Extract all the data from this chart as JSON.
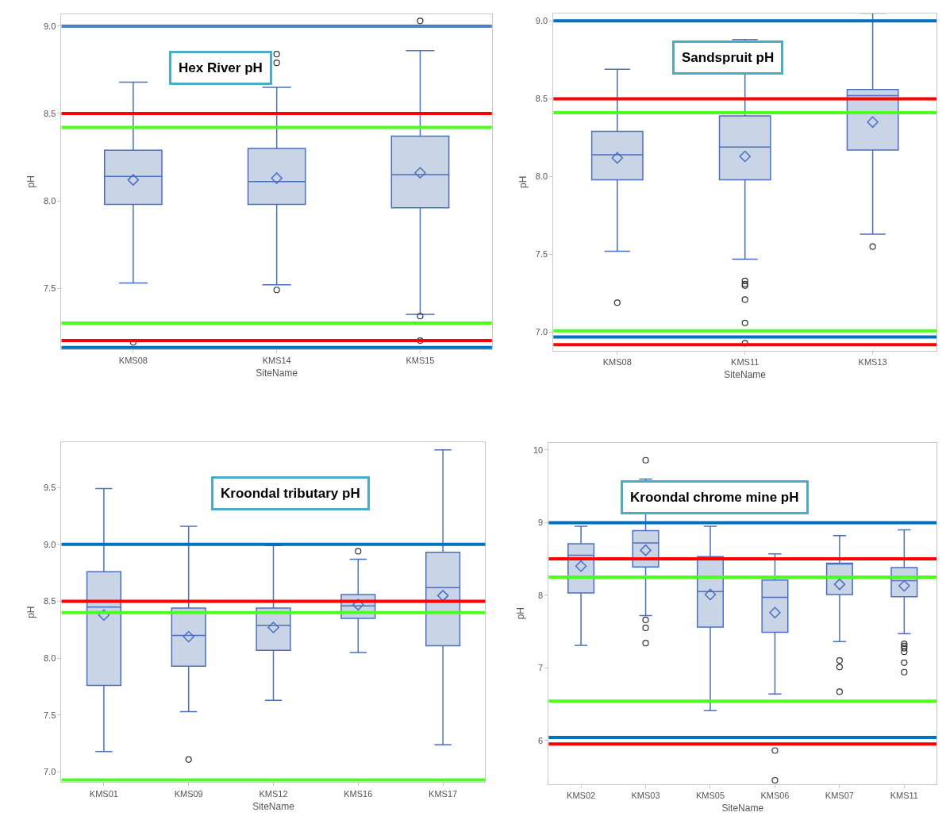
{
  "chart_data": [
    {
      "type": "box",
      "title": "Hex River pH",
      "xlabel": "SiteName",
      "ylabel": "pH",
      "categories": [
        "KMS08",
        "KMS14",
        "KMS15"
      ],
      "color": "#4a6fc0",
      "boxes": [
        {
          "low": 7.53,
          "q1": 7.98,
          "median": 8.14,
          "q3": 8.29,
          "high": 8.68,
          "mean": 8.12,
          "outliers": [
            7.19
          ]
        },
        {
          "low": 7.52,
          "q1": 7.98,
          "median": 8.11,
          "q3": 8.3,
          "high": 8.65,
          "mean": 8.13,
          "outliers": [
            8.84,
            8.79,
            7.49
          ]
        },
        {
          "low": 7.35,
          "q1": 7.96,
          "median": 8.15,
          "q3": 8.37,
          "high": 8.86,
          "mean": 8.16,
          "outliers": [
            9.03,
            7.34,
            7.2
          ]
        }
      ],
      "ylim": [
        7.15,
        9.07
      ],
      "yticks": [
        {
          "value": 7.5,
          "label": "7.5"
        },
        {
          "value": 8,
          "label": "8.0"
        },
        {
          "value": 8.5,
          "label": "8.5"
        },
        {
          "value": 9,
          "label": "9.0"
        }
      ],
      "ref_lines": [
        {
          "axis": "y",
          "value": 9.0,
          "color": "#4f7fbf"
        },
        {
          "axis": "y",
          "value": 8.5,
          "color": "#ff0000"
        },
        {
          "axis": "y",
          "value": 8.42,
          "color": "#4cff1c"
        },
        {
          "axis": "y",
          "value": 7.3,
          "color": "#4cff1c"
        },
        {
          "axis": "y",
          "value": 7.2,
          "color": "#ff0000"
        },
        {
          "axis": "y",
          "value": 7.16,
          "color": "#0070c0"
        }
      ]
    },
    {
      "type": "box",
      "title": "Sandspruit pH",
      "xlabel": "SiteName",
      "ylabel": "pH",
      "categories": [
        "KMS08",
        "KMS11",
        "KMS13"
      ],
      "color": "#4a6fc0",
      "boxes": [
        {
          "low": 7.52,
          "q1": 7.98,
          "median": 8.14,
          "q3": 8.29,
          "high": 8.69,
          "mean": 8.12,
          "outliers": [
            7.19
          ]
        },
        {
          "low": 7.47,
          "q1": 7.98,
          "median": 8.19,
          "q3": 8.39,
          "high": 8.88,
          "mean": 8.13,
          "outliers": [
            7.33,
            7.31,
            7.3,
            7.21,
            7.06,
            6.93
          ]
        },
        {
          "low": 7.63,
          "q1": 8.17,
          "median": 8.52,
          "q3": 8.56,
          "high": 9.05,
          "mean": 8.35,
          "outliers": [
            7.55
          ]
        }
      ],
      "ylim": [
        6.88,
        9.05
      ],
      "yticks": [
        {
          "value": 7,
          "label": "7.0"
        },
        {
          "value": 7.5,
          "label": "7.5"
        },
        {
          "value": 8,
          "label": "8.0"
        },
        {
          "value": 8.5,
          "label": "8.5"
        },
        {
          "value": 9,
          "label": "9.0"
        }
      ],
      "ref_lines": [
        {
          "axis": "y",
          "value": 9.0,
          "color": "#0070c0"
        },
        {
          "axis": "y",
          "value": 8.5,
          "color": "#ff0000"
        },
        {
          "axis": "y",
          "value": 8.41,
          "color": "#4cff1c"
        },
        {
          "axis": "y",
          "value": 7.01,
          "color": "#4cff1c"
        },
        {
          "axis": "y",
          "value": 6.97,
          "color": "#0070c0"
        },
        {
          "axis": "y",
          "value": 6.92,
          "color": "#ff0000"
        }
      ]
    },
    {
      "type": "box",
      "title": "Kroondal tributary pH",
      "xlabel": "SiteName",
      "ylabel": "pH",
      "categories": [
        "KMS01",
        "KMS09",
        "KMS12",
        "KMS16",
        "KMS17"
      ],
      "color": "#4a6fc0",
      "boxes": [
        {
          "low": 7.18,
          "q1": 7.76,
          "median": 8.45,
          "q3": 8.76,
          "high": 9.49,
          "mean": 8.38
        },
        {
          "low": 7.53,
          "q1": 7.93,
          "median": 8.2,
          "q3": 8.44,
          "high": 9.16,
          "mean": 8.19,
          "outliers": [
            7.11
          ]
        },
        {
          "low": 7.63,
          "q1": 8.07,
          "median": 8.29,
          "q3": 8.44,
          "high": 8.99,
          "mean": 8.27
        },
        {
          "low": 8.05,
          "q1": 8.35,
          "median": 8.46,
          "q3": 8.56,
          "high": 8.87,
          "mean": 8.47,
          "outliers": [
            8.94
          ]
        },
        {
          "low": 7.24,
          "q1": 8.11,
          "median": 8.62,
          "q3": 8.93,
          "high": 9.83,
          "mean": 8.55
        }
      ],
      "ylim": [
        6.91,
        9.9
      ],
      "yticks": [
        {
          "value": 7,
          "label": "7.0"
        },
        {
          "value": 7.5,
          "label": "7.5"
        },
        {
          "value": 8,
          "label": "8.0"
        },
        {
          "value": 8.5,
          "label": "8.5"
        },
        {
          "value": 9,
          "label": "9.0"
        },
        {
          "value": 9.5,
          "label": "9.5"
        }
      ],
      "ref_lines": [
        {
          "axis": "y",
          "value": 9.0,
          "color": "#0070c0"
        },
        {
          "axis": "y",
          "value": 8.5,
          "color": "#ff0000"
        },
        {
          "axis": "y",
          "value": 8.4,
          "color": "#4cff1c"
        },
        {
          "axis": "y",
          "value": 6.93,
          "color": "#4cff1c"
        }
      ]
    },
    {
      "type": "box",
      "title": "Kroondal chrome mine pH",
      "xlabel": "SiteName",
      "ylabel": "pH",
      "categories": [
        "KMS02",
        "KMS03",
        "KMS05",
        "KMS06",
        "KMS07",
        "KMS11"
      ],
      "color": "#4a6fc0",
      "boxes": [
        {
          "low": 7.31,
          "q1": 8.03,
          "median": 8.55,
          "q3": 8.71,
          "high": 8.95,
          "mean": 8.4
        },
        {
          "low": 7.72,
          "q1": 8.39,
          "median": 8.72,
          "q3": 8.89,
          "high": 9.6,
          "mean": 8.62,
          "outliers": [
            9.86,
            7.66,
            7.55,
            7.34
          ]
        },
        {
          "low": 6.41,
          "q1": 7.56,
          "median": 8.05,
          "q3": 8.53,
          "high": 8.95,
          "mean": 8.01
        },
        {
          "low": 6.64,
          "q1": 7.49,
          "median": 7.97,
          "q3": 8.21,
          "high": 8.57,
          "mean": 7.76,
          "outliers": [
            5.86,
            5.45
          ]
        },
        {
          "low": 7.36,
          "q1": 8.01,
          "median": 8.44,
          "q3": 8.44,
          "high": 8.82,
          "mean": 8.15,
          "outliers": [
            7.1,
            7.01,
            6.67
          ]
        },
        {
          "low": 7.47,
          "q1": 7.98,
          "median": 8.2,
          "q3": 8.38,
          "high": 8.9,
          "mean": 8.13,
          "outliers": [
            7.33,
            7.3,
            7.27,
            7.22,
            7.07,
            6.94
          ]
        }
      ],
      "ylim": [
        5.4,
        10.1
      ],
      "yticks": [
        6,
        7,
        8,
        9,
        10
      ],
      "ref_lines": [
        {
          "axis": "y",
          "value": 9.0,
          "color": "#0070c0"
        },
        {
          "axis": "y",
          "value": 8.5,
          "color": "#ff0000"
        },
        {
          "axis": "y",
          "value": 8.25,
          "color": "#4cff1c"
        },
        {
          "axis": "y",
          "value": 6.54,
          "color": "#4cff1c"
        },
        {
          "axis": "y",
          "value": 6.04,
          "color": "#0070c0"
        },
        {
          "axis": "y",
          "value": 5.95,
          "color": "#ff0000"
        }
      ]
    }
  ]
}
